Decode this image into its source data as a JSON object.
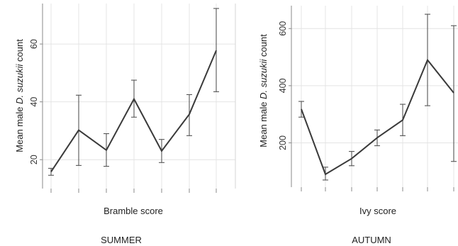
{
  "chart_data": [
    {
      "type": "line",
      "title": "",
      "xlabel": "Bramble score",
      "ylabel_prefix": "Mean male ",
      "ylabel_italic": "D. suzukii",
      "ylabel_suffix": " count",
      "caption": "SUMMER",
      "ylim": [
        10,
        74
      ],
      "yticks": [
        20,
        40,
        60
      ],
      "grid": true,
      "x": [
        0,
        1,
        2,
        3,
        4,
        5,
        6
      ],
      "y": [
        15.8,
        30.2,
        23.3,
        41,
        23,
        35.7,
        57.8
      ],
      "err_low": [
        14.6,
        18,
        17.7,
        34.7,
        19,
        28.3,
        43.5
      ],
      "err_high": [
        17,
        42.3,
        29,
        47.5,
        27,
        42.5,
        72.3
      ]
    },
    {
      "type": "line",
      "title": "",
      "xlabel": "Ivy score",
      "ylabel_prefix": "Mean male ",
      "ylabel_italic": "D. suzukii",
      "ylabel_suffix": " count",
      "caption": "AUTUMN",
      "ylim": [
        45,
        680
      ],
      "yticks": [
        200,
        400,
        600
      ],
      "grid": true,
      "x": [
        0,
        1,
        2,
        3,
        4,
        5,
        6
      ],
      "y": [
        318,
        90,
        145,
        218,
        280,
        490,
        375
      ],
      "err_low": [
        290,
        70,
        120,
        190,
        225,
        330,
        135
      ],
      "err_high": [
        345,
        115,
        170,
        245,
        335,
        650,
        610
      ]
    }
  ]
}
